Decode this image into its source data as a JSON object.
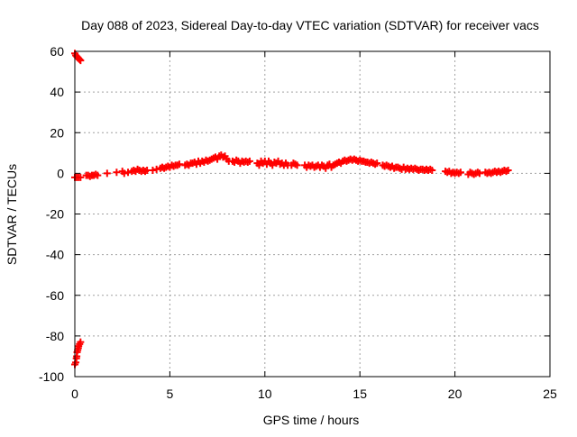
{
  "chart_data": {
    "type": "scatter",
    "title": "Day 088 of 2023, Sidereal Day-to-day VTEC variation (SDTVAR) for receiver vacs",
    "xlabel": "GPS time / hours",
    "ylabel": "SDTVAR / TECUs",
    "xlim": [
      0,
      25
    ],
    "ylim": [
      -100,
      60
    ],
    "xticks": [
      0,
      5,
      10,
      15,
      20,
      25
    ],
    "yticks": [
      -100,
      -80,
      -60,
      -40,
      -20,
      0,
      20,
      40,
      60
    ],
    "grid": true,
    "marker": "plus",
    "color": "#ff0000",
    "series": [
      {
        "name": "SDTVAR",
        "points": [
          [
            0.0,
            59
          ],
          [
            0.05,
            58
          ],
          [
            0.1,
            57.5
          ],
          [
            0.15,
            57
          ],
          [
            0.2,
            56.5
          ],
          [
            0.25,
            56
          ],
          [
            0.3,
            55.5
          ],
          [
            0.0,
            -94
          ],
          [
            0.05,
            -93
          ],
          [
            0.08,
            -91
          ],
          [
            0.1,
            -90
          ],
          [
            0.12,
            -88
          ],
          [
            0.15,
            -87
          ],
          [
            0.18,
            -86
          ],
          [
            0.2,
            -85
          ],
          [
            0.25,
            -84
          ],
          [
            0.3,
            -83
          ],
          [
            0.0,
            -2
          ],
          [
            0.1,
            -2
          ],
          [
            0.2,
            -2
          ],
          [
            0.3,
            -2
          ],
          [
            0.6,
            -1
          ],
          [
            0.7,
            -1
          ],
          [
            0.8,
            -1.5
          ],
          [
            0.9,
            -1
          ],
          [
            1.0,
            -1
          ],
          [
            1.1,
            -0.5
          ],
          [
            1.2,
            -1
          ],
          [
            1.7,
            0
          ],
          [
            2.2,
            0.5
          ],
          [
            2.5,
            1
          ],
          [
            2.6,
            0
          ],
          [
            2.8,
            0.5
          ],
          [
            3.0,
            1
          ],
          [
            3.1,
            1.5
          ],
          [
            3.2,
            1
          ],
          [
            3.3,
            2
          ],
          [
            3.4,
            1.5
          ],
          [
            3.5,
            1
          ],
          [
            3.6,
            1.5
          ],
          [
            3.7,
            1
          ],
          [
            3.8,
            1.5
          ],
          [
            4.1,
            1.5
          ],
          [
            4.3,
            2
          ],
          [
            4.5,
            2.5
          ],
          [
            4.6,
            3
          ],
          [
            4.7,
            2.5
          ],
          [
            4.8,
            3
          ],
          [
            4.9,
            3.5
          ],
          [
            5.0,
            3
          ],
          [
            5.1,
            4
          ],
          [
            5.2,
            3.5
          ],
          [
            5.3,
            4
          ],
          [
            5.4,
            4
          ],
          [
            5.5,
            4.5
          ],
          [
            5.8,
            4
          ],
          [
            5.9,
            4.5
          ],
          [
            6.0,
            4
          ],
          [
            6.1,
            5
          ],
          [
            6.2,
            5
          ],
          [
            6.3,
            5.5
          ],
          [
            6.4,
            4.5
          ],
          [
            6.5,
            6
          ],
          [
            6.6,
            5
          ],
          [
            6.7,
            6
          ],
          [
            6.8,
            5.5
          ],
          [
            6.9,
            6.5
          ],
          [
            7.0,
            6
          ],
          [
            7.1,
            6.5
          ],
          [
            7.2,
            7
          ],
          [
            7.3,
            7.5
          ],
          [
            7.4,
            8
          ],
          [
            7.5,
            7
          ],
          [
            7.6,
            8.5
          ],
          [
            7.7,
            9
          ],
          [
            7.8,
            8
          ],
          [
            7.9,
            8.5
          ],
          [
            8.0,
            7
          ],
          [
            8.1,
            6
          ],
          [
            8.3,
            6
          ],
          [
            8.4,
            5.5
          ],
          [
            8.5,
            6.5
          ],
          [
            8.6,
            6
          ],
          [
            8.7,
            5
          ],
          [
            8.8,
            6
          ],
          [
            8.9,
            5.5
          ],
          [
            9.0,
            6
          ],
          [
            9.1,
            5.5
          ],
          [
            9.2,
            6
          ],
          [
            9.6,
            5
          ],
          [
            9.7,
            4
          ],
          [
            9.8,
            6
          ],
          [
            9.9,
            5
          ],
          [
            10.0,
            6
          ],
          [
            10.1,
            4.5
          ],
          [
            10.2,
            6
          ],
          [
            10.3,
            5
          ],
          [
            10.4,
            4
          ],
          [
            10.5,
            5.5
          ],
          [
            10.6,
            5
          ],
          [
            10.7,
            6
          ],
          [
            10.8,
            4.5
          ],
          [
            10.9,
            5
          ],
          [
            11.0,
            4
          ],
          [
            11.1,
            5
          ],
          [
            11.2,
            4
          ],
          [
            11.4,
            4
          ],
          [
            11.5,
            5
          ],
          [
            11.6,
            4.5
          ],
          [
            11.7,
            4
          ],
          [
            12.1,
            4
          ],
          [
            12.2,
            3
          ],
          [
            12.3,
            4
          ],
          [
            12.4,
            3.5
          ],
          [
            12.5,
            4
          ],
          [
            12.6,
            3
          ],
          [
            12.7,
            3.5
          ],
          [
            12.8,
            4
          ],
          [
            12.9,
            3
          ],
          [
            13.0,
            4
          ],
          [
            13.1,
            3.5
          ],
          [
            13.2,
            2.5
          ],
          [
            13.3,
            4
          ],
          [
            13.4,
            4.5
          ],
          [
            13.5,
            3
          ],
          [
            13.6,
            4
          ],
          [
            13.7,
            4.5
          ],
          [
            13.8,
            5
          ],
          [
            13.9,
            5.5
          ],
          [
            14.0,
            5
          ],
          [
            14.1,
            6
          ],
          [
            14.2,
            6.5
          ],
          [
            14.3,
            6
          ],
          [
            14.4,
            6.5
          ],
          [
            14.5,
            7
          ],
          [
            14.6,
            6.5
          ],
          [
            14.7,
            7
          ],
          [
            14.8,
            6.5
          ],
          [
            14.9,
            6
          ],
          [
            15.0,
            6.5
          ],
          [
            15.1,
            6
          ],
          [
            15.2,
            6
          ],
          [
            15.3,
            5.5
          ],
          [
            15.4,
            5.5
          ],
          [
            15.5,
            5
          ],
          [
            15.6,
            5.5
          ],
          [
            15.7,
            5
          ],
          [
            15.8,
            4.5
          ],
          [
            15.9,
            5
          ],
          [
            16.2,
            4
          ],
          [
            16.3,
            3.5
          ],
          [
            16.4,
            4
          ],
          [
            16.5,
            3.5
          ],
          [
            16.6,
            3
          ],
          [
            16.7,
            3.5
          ],
          [
            16.8,
            2.5
          ],
          [
            16.9,
            3
          ],
          [
            17.0,
            3
          ],
          [
            17.1,
            2.5
          ],
          [
            17.2,
            2
          ],
          [
            17.3,
            3
          ],
          [
            17.4,
            2
          ],
          [
            17.5,
            2.5
          ],
          [
            17.6,
            2
          ],
          [
            17.7,
            2.5
          ],
          [
            17.8,
            2
          ],
          [
            17.9,
            2.5
          ],
          [
            18.0,
            2
          ],
          [
            18.1,
            1.5
          ],
          [
            18.2,
            2
          ],
          [
            18.3,
            2
          ],
          [
            18.4,
            1.5
          ],
          [
            18.5,
            2
          ],
          [
            18.6,
            1.5
          ],
          [
            18.7,
            2
          ],
          [
            18.8,
            1.5
          ],
          [
            19.5,
            1
          ],
          [
            19.6,
            0.5
          ],
          [
            19.7,
            1
          ],
          [
            19.8,
            0
          ],
          [
            19.9,
            0.5
          ],
          [
            20.0,
            0
          ],
          [
            20.1,
            0.5
          ],
          [
            20.2,
            0
          ],
          [
            20.3,
            0.5
          ],
          [
            20.7,
            -0.5
          ],
          [
            20.8,
            0.5
          ],
          [
            20.9,
            0
          ],
          [
            21.0,
            -0.5
          ],
          [
            21.1,
            0
          ],
          [
            21.2,
            0.5
          ],
          [
            21.3,
            0
          ],
          [
            21.6,
            0.5
          ],
          [
            21.7,
            0
          ],
          [
            21.8,
            0.5
          ],
          [
            21.9,
            0
          ],
          [
            22.0,
            0.5
          ],
          [
            22.1,
            1
          ],
          [
            22.2,
            0.5
          ],
          [
            22.3,
            1
          ],
          [
            22.4,
            0.5
          ],
          [
            22.5,
            1
          ],
          [
            22.6,
            1.5
          ],
          [
            22.7,
            1
          ],
          [
            22.8,
            1.5
          ]
        ]
      }
    ]
  }
}
